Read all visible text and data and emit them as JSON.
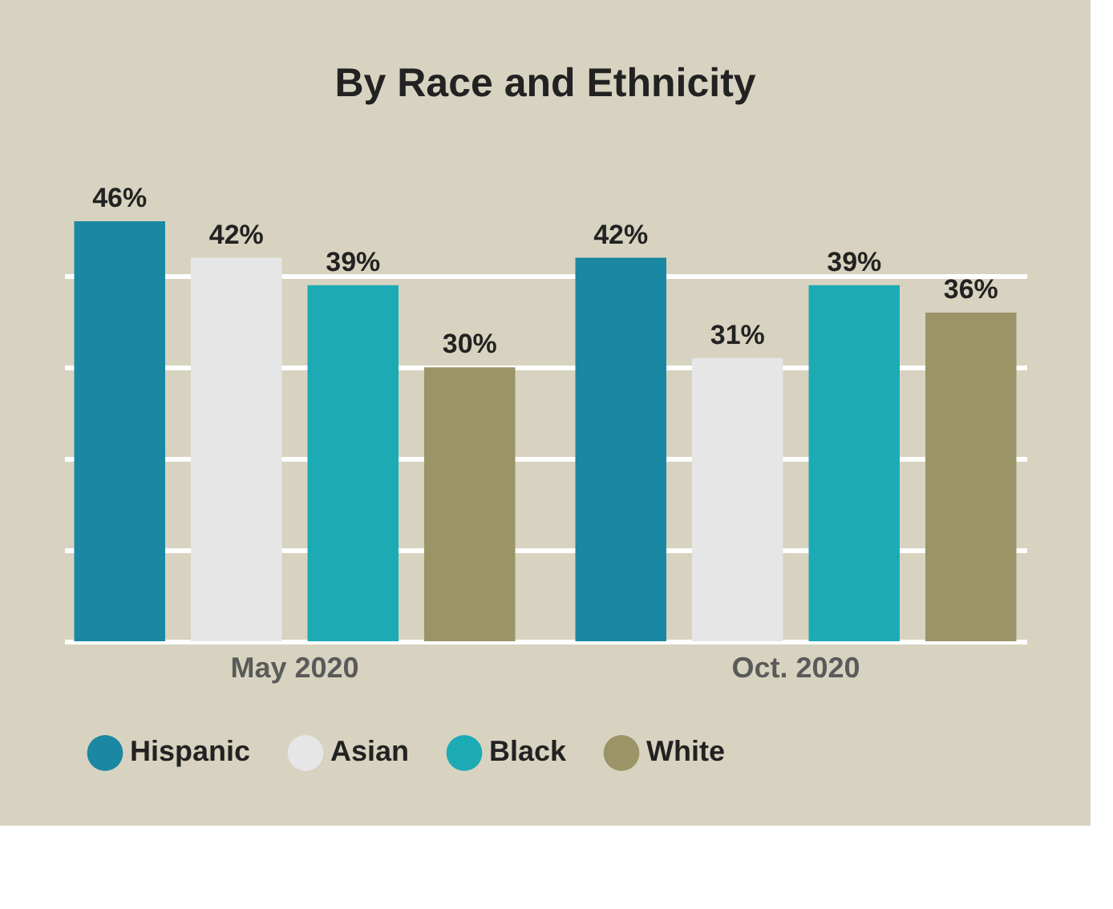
{
  "chart_data": {
    "type": "bar",
    "title": "By Race and Ethnicity",
    "categories": [
      "May 2020",
      "Oct. 2020"
    ],
    "series": [
      {
        "name": "Hispanic",
        "color": "#1a87a3",
        "values": [
          46,
          42
        ],
        "value_labels": [
          "46%",
          "42%"
        ]
      },
      {
        "name": "Asian",
        "color": "#e6e6e6",
        "values": [
          42,
          31
        ],
        "value_labels": [
          "42%",
          "31%"
        ]
      },
      {
        "name": "Black",
        "color": "#1cabb5",
        "values": [
          39,
          39
        ],
        "value_labels": [
          "39%",
          "39%"
        ]
      },
      {
        "name": "White",
        "color": "#9a9467",
        "values": [
          30,
          36
        ],
        "value_labels": [
          "30%",
          "36%"
        ]
      }
    ],
    "ylim": [
      0,
      46
    ],
    "yticks": [
      {
        "value": 0,
        "label": null
      },
      {
        "value": 10,
        "label": null
      },
      {
        "value": 20,
        "label": null
      },
      {
        "value": 30,
        "label": null
      },
      {
        "value": 40,
        "label": null
      }
    ],
    "tick_labels": "x",
    "grid": "y",
    "legend": "bottom"
  }
}
